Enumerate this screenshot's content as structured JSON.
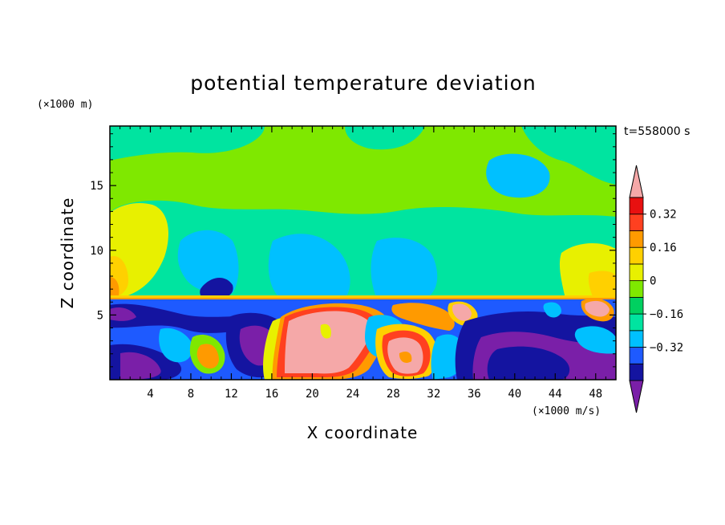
{
  "chart_data": {
    "type": "contour",
    "title": "potential temperature deviation",
    "time_label": "t=558000 s",
    "xlabel": "X coordinate",
    "ylabel": "Z coordinate",
    "x_unit": "(×1000 m/s)",
    "y_unit": "(×1000 m)",
    "xlim": [
      0,
      50
    ],
    "ylim": [
      0,
      19.6
    ],
    "x_ticks": [
      4,
      8,
      12,
      16,
      20,
      24,
      28,
      32,
      36,
      40,
      44,
      48
    ],
    "y_ticks": [
      5,
      10,
      15
    ],
    "interface_height": 6.3,
    "colorbar": {
      "levels": [
        -0.48,
        -0.4,
        -0.32,
        -0.24,
        -0.16,
        -0.08,
        0,
        0.08,
        0.16,
        0.24,
        0.32,
        0.4
      ],
      "labeled_levels": [
        -0.32,
        -0.16,
        0,
        0.16,
        0.32
      ],
      "labels": [
        "−0.32",
        "−0.16",
        "0",
        "0.16",
        "0.32"
      ],
      "colors": [
        "#7a1fa8",
        "#1414a0",
        "#1e5aff",
        "#00c0ff",
        "#00e4a0",
        "#00d060",
        "#7fe800",
        "#e8f000",
        "#ffd000",
        "#ff9a00",
        "#ff4020",
        "#e81010",
        "#f5a8a8"
      ]
    }
  }
}
